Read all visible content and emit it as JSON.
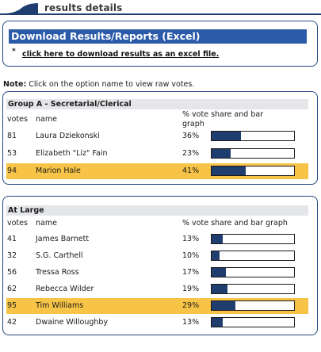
{
  "header": {
    "title": "results details"
  },
  "download": {
    "title": "Download Results/Reports (Excel)",
    "bullet": "*",
    "link_label": "click here to download results as an excel file."
  },
  "note": {
    "label": "Note:",
    "text": " Click on the option name to view raw votes."
  },
  "groups": [
    {
      "title": "Group A - Secretarial/Clerical",
      "col_votes": "votes",
      "col_name": "name",
      "col_share": "% vote share and bar graph",
      "rows": [
        {
          "votes": "81",
          "name": "Laura Dziekonski",
          "pct": "36%",
          "share": 0.36,
          "winner": false
        },
        {
          "votes": "53",
          "name": "Elizabeth \"Liz\" Fain",
          "pct": "23%",
          "share": 0.23,
          "winner": false
        },
        {
          "votes": "94",
          "name": "Marion Hale",
          "pct": "41%",
          "share": 0.41,
          "winner": true
        }
      ]
    },
    {
      "title": "At Large",
      "col_votes": "votes",
      "col_name": "name",
      "col_share": "% vote share and bar graph",
      "rows": [
        {
          "votes": "41",
          "name": "James Barnett",
          "pct": "13%",
          "share": 0.13,
          "winner": false
        },
        {
          "votes": "32",
          "name": "S.G. Carthell",
          "pct": "10%",
          "share": 0.1,
          "winner": false
        },
        {
          "votes": "56",
          "name": "Tressa Ross",
          "pct": "17%",
          "share": 0.17,
          "winner": false
        },
        {
          "votes": "62",
          "name": "Rebecca Wilder",
          "pct": "19%",
          "share": 0.19,
          "winner": false
        },
        {
          "votes": "95",
          "name": "Tim Williams",
          "pct": "29%",
          "share": 0.29,
          "winner": true
        },
        {
          "votes": "42",
          "name": "Dwaine Willoughby",
          "pct": "13%",
          "share": 0.13,
          "winner": false
        }
      ]
    }
  ],
  "colors": {
    "accent": "#2a5aa8",
    "bar_fill": "#1f3d6e",
    "winner_highlight": "#f8c447",
    "border": "#24467e"
  }
}
